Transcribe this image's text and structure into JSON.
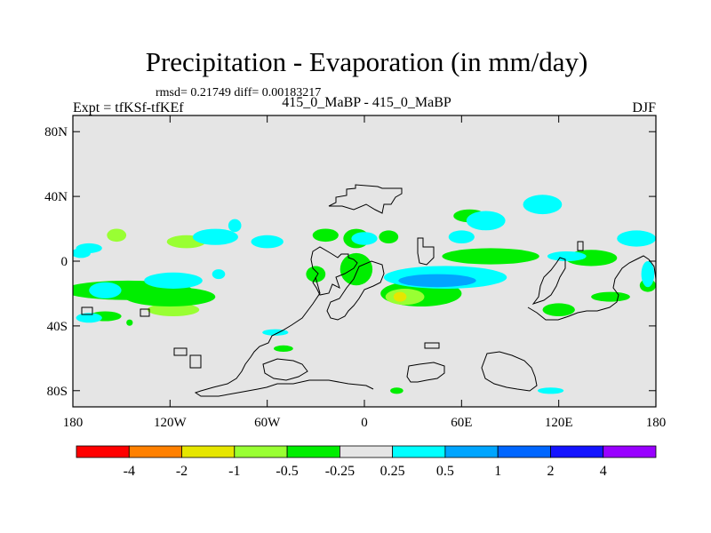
{
  "chart_data": {
    "type": "contour-map",
    "title": "Precipitation - Evaporation (in mm/day)",
    "stats": "rmsd= 0.21749 diff= 0.00183217",
    "subtitle": "415_0_MaBP - 415_0_MaBP",
    "left_label": "Expt = tfKSf-tfKEf",
    "right_label": "DJF",
    "x_range": [
      -180,
      180
    ],
    "y_range": [
      -90,
      90
    ],
    "x_ticks": [
      {
        "value": -180,
        "label": "180"
      },
      {
        "value": -120,
        "label": "120W"
      },
      {
        "value": -60,
        "label": "60W"
      },
      {
        "value": 0,
        "label": "0"
      },
      {
        "value": 60,
        "label": "60E"
      },
      {
        "value": 120,
        "label": "120E"
      },
      {
        "value": 180,
        "label": "180"
      }
    ],
    "y_ticks": [
      {
        "value": 80,
        "label": "80N"
      },
      {
        "value": 40,
        "label": "40N"
      },
      {
        "value": 0,
        "label": "0"
      },
      {
        "value": -40,
        "label": "40S"
      },
      {
        "value": -80,
        "label": "80S"
      }
    ],
    "colorbar": {
      "colors": [
        "#ff0000",
        "#ff8000",
        "#e6e600",
        "#99ff33",
        "#00ee00",
        "#e5e5e5",
        "#00ffff",
        "#00a5ff",
        "#0066ff",
        "#1414ff",
        "#9900ff"
      ],
      "labels": [
        "-4",
        "-2",
        "-1",
        "-0.5",
        "-0.25",
        "0.25",
        "0.5",
        "1",
        "2",
        "4"
      ]
    },
    "anomaly_regions": [
      {
        "level": "-0.5",
        "center": [
          -153,
          16
        ],
        "radius": [
          6,
          4
        ]
      },
      {
        "level": "-0.5",
        "center": [
          -110,
          12
        ],
        "radius": [
          12,
          4
        ]
      },
      {
        "level": "-0.25",
        "center": [
          -146,
          -18
        ],
        "radius": [
          40,
          6
        ]
      },
      {
        "level": "-0.5",
        "center": [
          -118,
          -30
        ],
        "radius": [
          16,
          4
        ]
      },
      {
        "level": "-0.25",
        "center": [
          -120,
          -22
        ],
        "radius": [
          28,
          6
        ]
      },
      {
        "level": "-0.25",
        "center": [
          -160,
          -34
        ],
        "radius": [
          10,
          3
        ]
      },
      {
        "level": "-0.25",
        "center": [
          -145,
          -38
        ],
        "radius": [
          2,
          2
        ]
      },
      {
        "level": "-0.25",
        "center": [
          -50,
          -54
        ],
        "radius": [
          6,
          2
        ]
      },
      {
        "level": "-0.25",
        "center": [
          -24,
          16
        ],
        "radius": [
          8,
          4
        ]
      },
      {
        "level": "-0.25",
        "center": [
          -5,
          14
        ],
        "radius": [
          8,
          6
        ]
      },
      {
        "level": "-0.25",
        "center": [
          -5,
          -5
        ],
        "radius": [
          10,
          10
        ]
      },
      {
        "level": "-0.25",
        "center": [
          -30,
          -8
        ],
        "radius": [
          6,
          5
        ]
      },
      {
        "level": "-0.25",
        "center": [
          15,
          15
        ],
        "radius": [
          6,
          4
        ]
      },
      {
        "level": "-0.25",
        "center": [
          35,
          -20
        ],
        "radius": [
          25,
          8
        ]
      },
      {
        "level": "-0.5",
        "center": [
          25,
          -22
        ],
        "radius": [
          12,
          5
        ]
      },
      {
        "level": "-1",
        "center": [
          22,
          -22
        ],
        "radius": [
          4,
          3
        ]
      },
      {
        "level": "-0.25",
        "center": [
          78,
          3
        ],
        "radius": [
          30,
          5
        ]
      },
      {
        "level": "-0.25",
        "center": [
          140,
          2
        ],
        "radius": [
          16,
          5
        ]
      },
      {
        "level": "-0.25",
        "center": [
          20,
          -80
        ],
        "radius": [
          4,
          2
        ]
      },
      {
        "level": "-0.25",
        "center": [
          65,
          28
        ],
        "radius": [
          10,
          4
        ]
      },
      {
        "level": "-0.25",
        "center": [
          120,
          -30
        ],
        "radius": [
          10,
          4
        ]
      },
      {
        "level": "-0.25",
        "center": [
          152,
          -22
        ],
        "radius": [
          12,
          3
        ]
      },
      {
        "level": "-0.25",
        "center": [
          175,
          -15
        ],
        "radius": [
          5,
          4
        ]
      },
      {
        "level": "0.25",
        "center": [
          -175,
          5
        ],
        "radius": [
          6,
          3
        ]
      },
      {
        "level": "0.25",
        "center": [
          -170,
          -35
        ],
        "radius": [
          8,
          3
        ]
      },
      {
        "level": "0.25",
        "center": [
          -92,
          15
        ],
        "radius": [
          14,
          5
        ]
      },
      {
        "level": "0.25",
        "center": [
          -80,
          22
        ],
        "radius": [
          4,
          4
        ]
      },
      {
        "level": "0.25",
        "center": [
          -60,
          12
        ],
        "radius": [
          10,
          4
        ]
      },
      {
        "level": "0.25",
        "center": [
          -90,
          -8
        ],
        "radius": [
          4,
          3
        ]
      },
      {
        "level": "0.25",
        "center": [
          -160,
          -18
        ],
        "radius": [
          10,
          5
        ]
      },
      {
        "level": "0.25",
        "center": [
          -118,
          -12
        ],
        "radius": [
          18,
          5
        ]
      },
      {
        "level": "0.25",
        "center": [
          -55,
          -44
        ],
        "radius": [
          8,
          2
        ]
      },
      {
        "level": "0.25",
        "center": [
          0,
          14
        ],
        "radius": [
          8,
          4
        ]
      },
      {
        "level": "0.25",
        "center": [
          50,
          -10
        ],
        "radius": [
          38,
          7
        ]
      },
      {
        "level": "0.5",
        "center": [
          45,
          -12
        ],
        "radius": [
          24,
          4
        ]
      },
      {
        "level": "0.25",
        "center": [
          75,
          25
        ],
        "radius": [
          12,
          6
        ]
      },
      {
        "level": "0.25",
        "center": [
          110,
          35
        ],
        "radius": [
          12,
          6
        ]
      },
      {
        "level": "0.25",
        "center": [
          125,
          3
        ],
        "radius": [
          12,
          3
        ]
      },
      {
        "level": "0.25",
        "center": [
          168,
          14
        ],
        "radius": [
          12,
          5
        ]
      },
      {
        "level": "0.25",
        "center": [
          175,
          -8
        ],
        "radius": [
          4,
          8
        ]
      },
      {
        "level": "0.25",
        "center": [
          -170,
          8
        ],
        "radius": [
          8,
          3
        ]
      },
      {
        "level": "0.25",
        "center": [
          115,
          -80
        ],
        "radius": [
          8,
          2
        ]
      },
      {
        "level": "0.25",
        "center": [
          60,
          15
        ],
        "radius": [
          8,
          4
        ]
      }
    ]
  }
}
